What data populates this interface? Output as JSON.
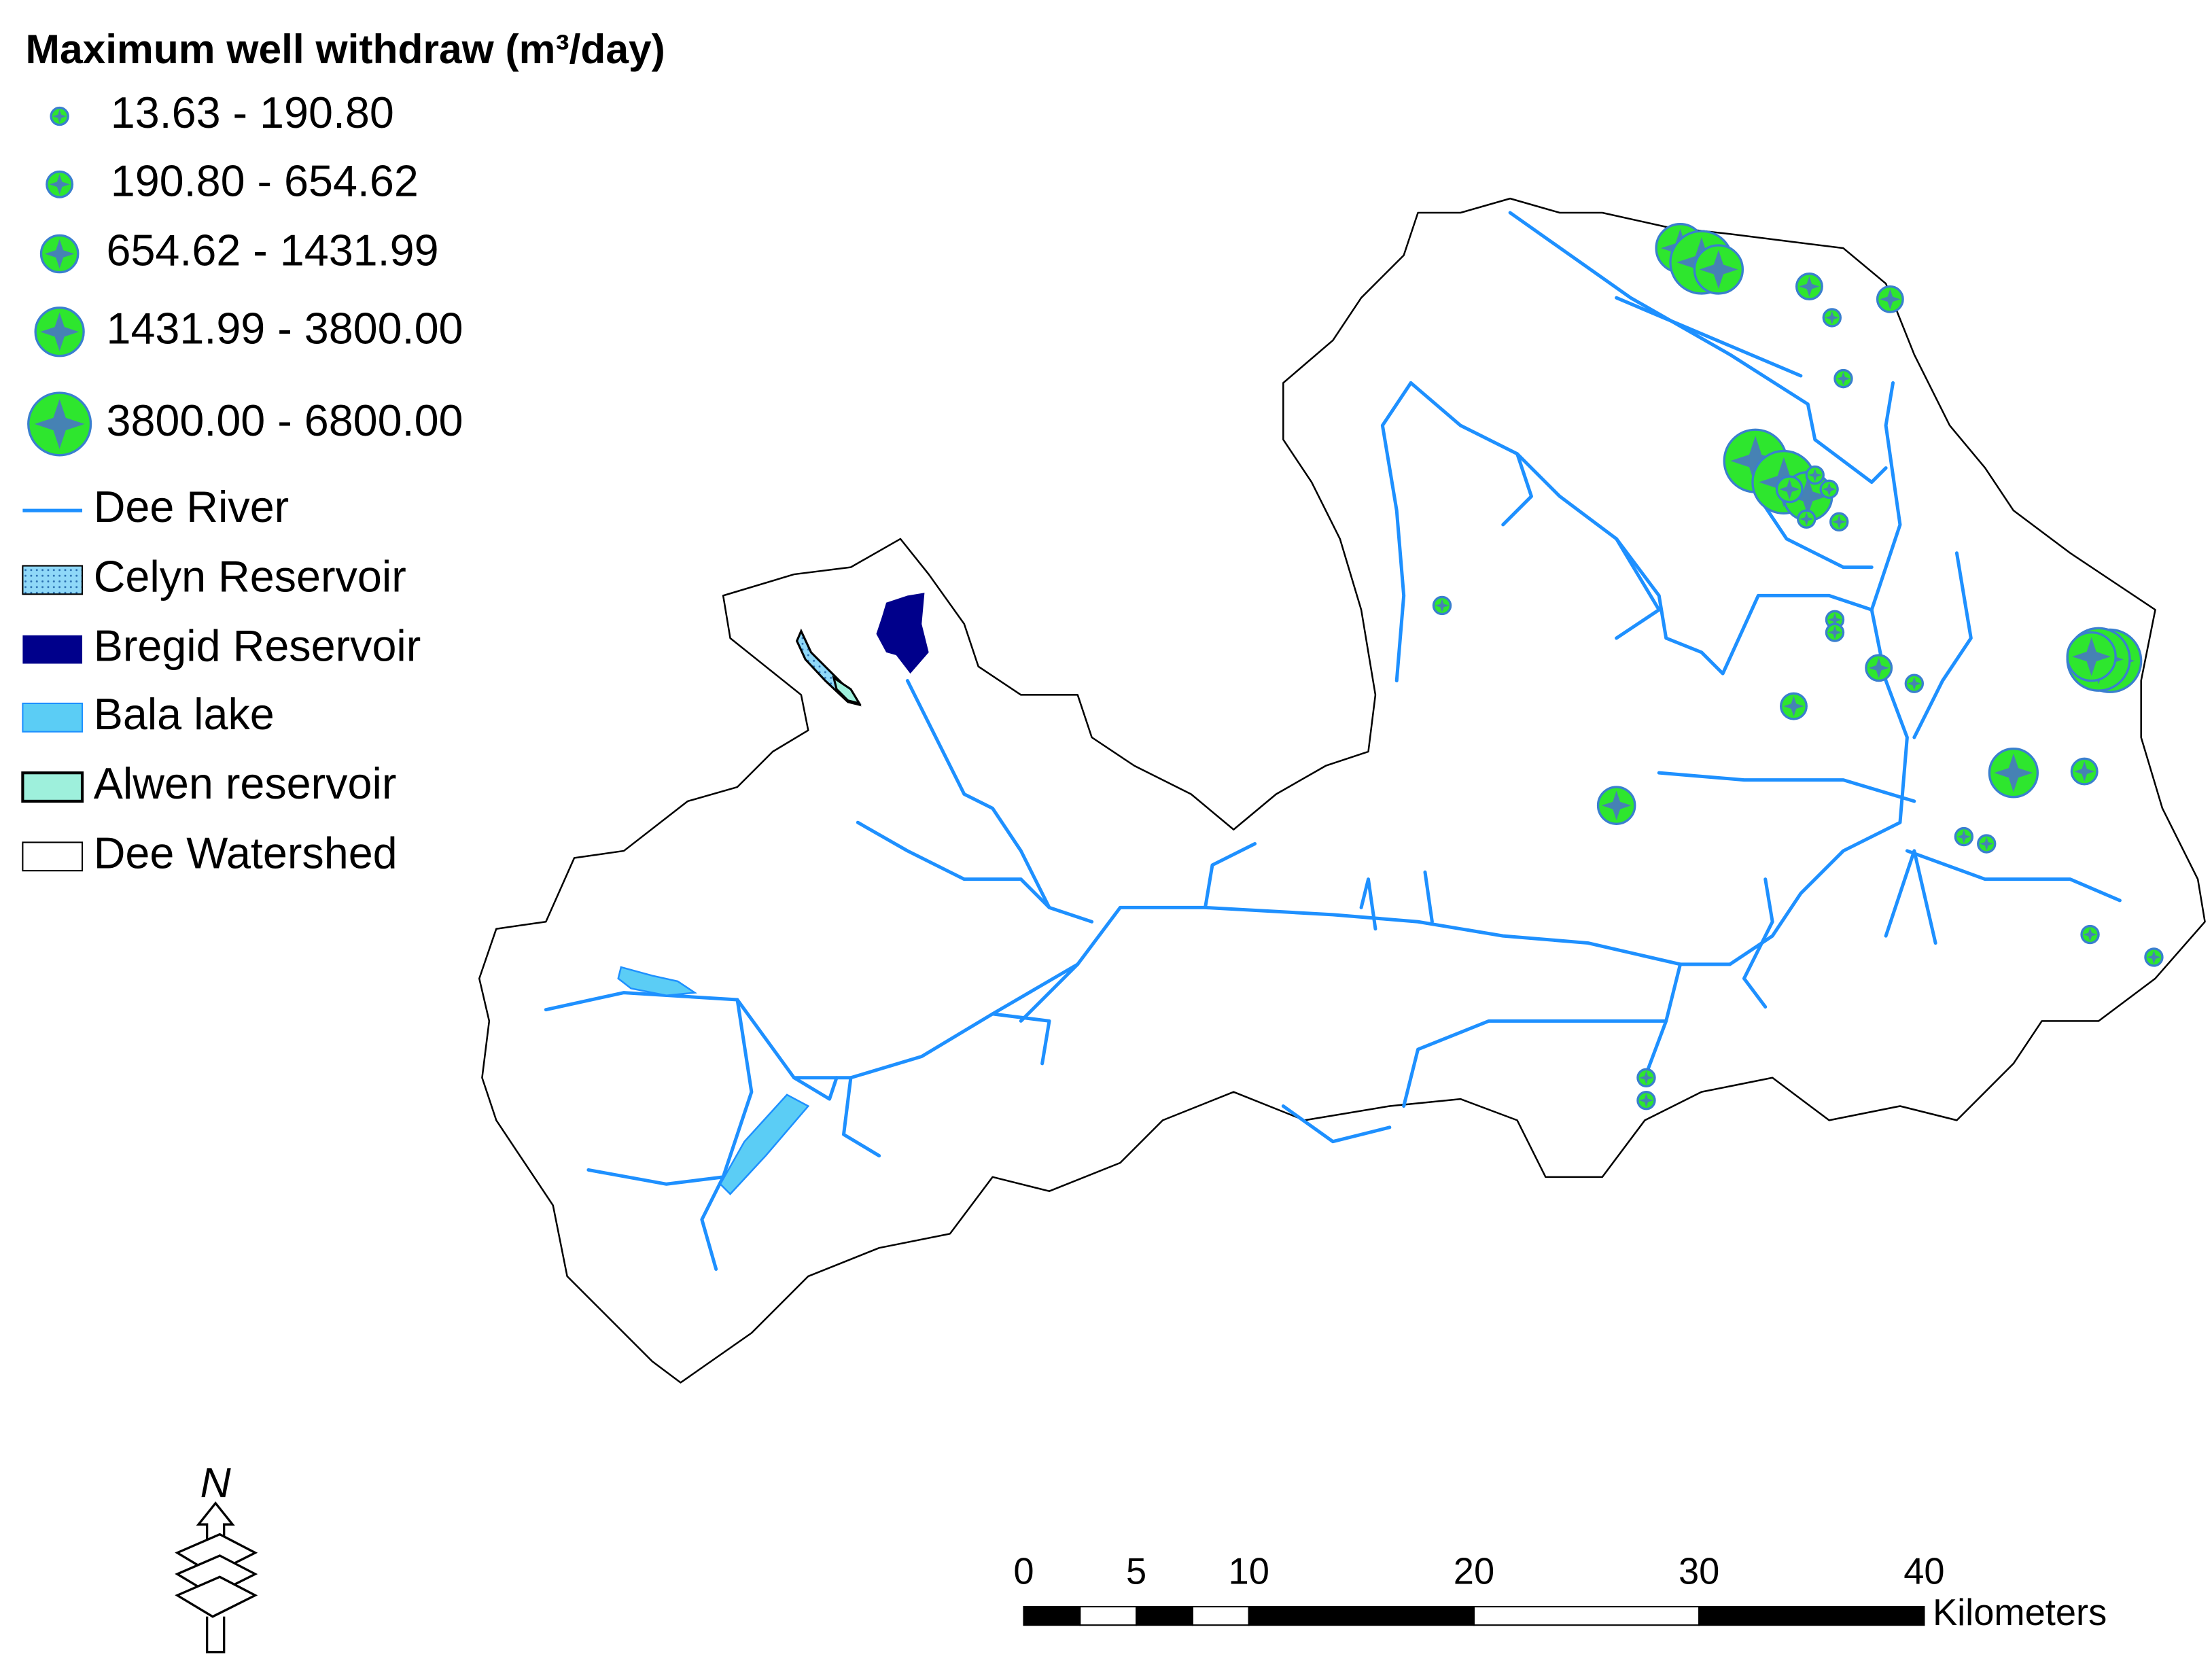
{
  "legend": {
    "title": "Maximum well withdraw (m³/day)",
    "well_classes": [
      "13.63 - 190.80",
      "190.80 - 654.62",
      "654.62 - 1431.99",
      "1431.99 - 3800.00",
      "3800.00 - 6800.00"
    ],
    "layers": [
      "Dee River",
      "Celyn Reservoir",
      "Bregid Reservoir",
      "Bala lake",
      "Alwen reservoir",
      "Dee Watershed"
    ]
  },
  "north_arrow": "N",
  "scale_bar": {
    "ticks": [
      0,
      5,
      10,
      20,
      30,
      40
    ],
    "unit": "Kilometers"
  }
}
